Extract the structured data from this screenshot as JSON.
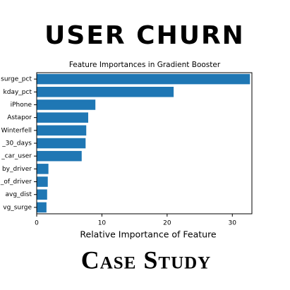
{
  "header": {
    "title": "USER CHURN"
  },
  "chart_data": {
    "type": "barh",
    "title": "Feature Importances in Gradient Booster",
    "x_label": "Relative Importance of Feature",
    "categories": [
      "surge_pct",
      "kday_pct",
      "iPhone",
      "Astapor",
      "Winterfell",
      "_30_days",
      "_car_user",
      "by_driver",
      "_of_driver",
      "avg_dist",
      "vg_surge"
    ],
    "values": [
      32.7,
      21.0,
      9.0,
      7.9,
      7.6,
      7.5,
      6.9,
      1.8,
      1.7,
      1.6,
      1.5
    ],
    "color": "#1f77b4",
    "xlim": [
      0,
      33
    ],
    "xticks": [
      0,
      10,
      20,
      30
    ]
  },
  "footer": {
    "title": "Case Study"
  }
}
